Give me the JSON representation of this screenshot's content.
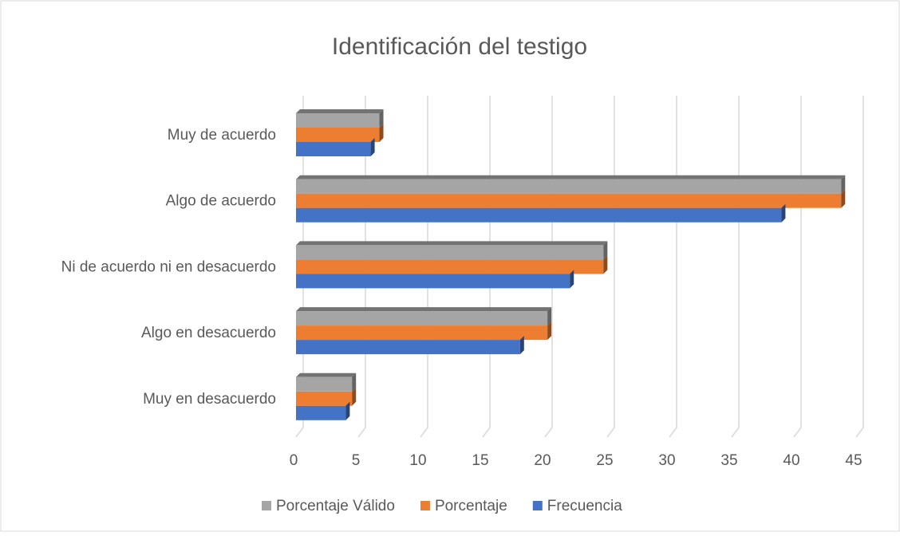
{
  "chart_data": {
    "type": "bar3d_horizontal",
    "title": "Identificación del testigo",
    "categories": [
      "Muy de acuerdo",
      "Algo de acuerdo",
      "Ni de acuerdo ni en desacuerdo",
      "Algo en desacuerdo",
      "Muy en desacuerdo"
    ],
    "series": [
      {
        "name": "Porcentaje Válido",
        "color": "#a5a5a5",
        "values": [
          6.7,
          43.8,
          24.7,
          20.2,
          4.5
        ]
      },
      {
        "name": "Porcentaje",
        "color": "#ed7d31",
        "values": [
          6.7,
          43.8,
          24.7,
          20.2,
          4.5
        ]
      },
      {
        "name": "Frecuencia",
        "color": "#4472c4",
        "values": [
          6,
          39,
          22,
          18,
          4
        ]
      }
    ],
    "xlim": [
      0,
      45
    ],
    "xticks": [
      0,
      5,
      10,
      15,
      20,
      25,
      30,
      35,
      40,
      45
    ],
    "grid": true,
    "legend": "bottom"
  }
}
